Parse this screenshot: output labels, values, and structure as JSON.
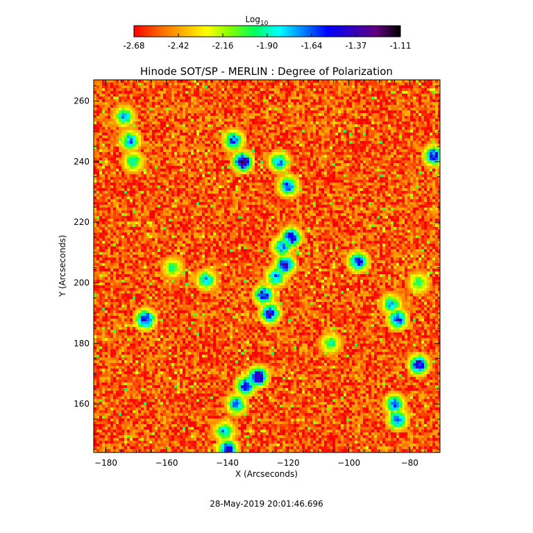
{
  "chart_data": {
    "type": "heatmap",
    "title": "Hinode SOT/SP - MERLIN : Degree of Polarization",
    "xlabel": "X (Arcseconds)",
    "ylabel": "Y (Arcseconds)",
    "xlim": [
      -184,
      -70
    ],
    "ylim": [
      144,
      267
    ],
    "xticks": [
      -180,
      -160,
      -140,
      -120,
      -100,
      -80
    ],
    "yticks": [
      160,
      180,
      200,
      220,
      240,
      260
    ],
    "timestamp": "28-May-2019 20:01:46.696",
    "colorbar": {
      "title": "Log",
      "title_subscript": "10",
      "range": [
        -2.68,
        -1.11
      ],
      "ticks": [
        "-2.68",
        "-2.42",
        "-2.16",
        "-1.90",
        "-1.64",
        "-1.37",
        "-1.11"
      ],
      "colormap": [
        "#ff0000",
        "#ff6000",
        "#ffb000",
        "#ffff00",
        "#80ff00",
        "#00ff60",
        "#00ffff",
        "#0080ff",
        "#0000ff",
        "#3000c0",
        "#600080",
        "#000000"
      ]
    },
    "background_level": -2.55,
    "features": [
      {
        "x": -135,
        "y": 240,
        "level": -1.2
      },
      {
        "x": -138,
        "y": 247,
        "level": -1.5
      },
      {
        "x": -123,
        "y": 240,
        "level": -1.6
      },
      {
        "x": -120,
        "y": 232,
        "level": -1.5
      },
      {
        "x": -119,
        "y": 215,
        "level": -1.3
      },
      {
        "x": -122,
        "y": 212,
        "level": -1.6
      },
      {
        "x": -121,
        "y": 206,
        "level": -1.3
      },
      {
        "x": -124,
        "y": 202,
        "level": -1.6
      },
      {
        "x": -128,
        "y": 196,
        "level": -1.4
      },
      {
        "x": -126,
        "y": 190,
        "level": -1.3
      },
      {
        "x": -167,
        "y": 188,
        "level": -1.3
      },
      {
        "x": -130,
        "y": 169,
        "level": -1.15
      },
      {
        "x": -134,
        "y": 166,
        "level": -1.4
      },
      {
        "x": -137,
        "y": 160,
        "level": -1.6
      },
      {
        "x": -140,
        "y": 145,
        "level": -1.3
      },
      {
        "x": -141,
        "y": 151,
        "level": -1.7
      },
      {
        "x": -97,
        "y": 207,
        "level": -1.4
      },
      {
        "x": -84,
        "y": 188,
        "level": -1.4
      },
      {
        "x": -86,
        "y": 193,
        "level": -1.7
      },
      {
        "x": -77,
        "y": 173,
        "level": -1.3
      },
      {
        "x": -85,
        "y": 160,
        "level": -1.5
      },
      {
        "x": -84,
        "y": 155,
        "level": -1.5
      },
      {
        "x": -72,
        "y": 242,
        "level": -1.4
      },
      {
        "x": -172,
        "y": 247,
        "level": -1.6
      },
      {
        "x": -174,
        "y": 255,
        "level": -1.7
      },
      {
        "x": -171,
        "y": 240,
        "level": -1.8
      },
      {
        "x": -147,
        "y": 201,
        "level": -1.7
      },
      {
        "x": -77,
        "y": 200,
        "level": -1.9
      },
      {
        "x": -106,
        "y": 180,
        "level": -1.9
      },
      {
        "x": -158,
        "y": 205,
        "level": -1.9
      }
    ]
  }
}
